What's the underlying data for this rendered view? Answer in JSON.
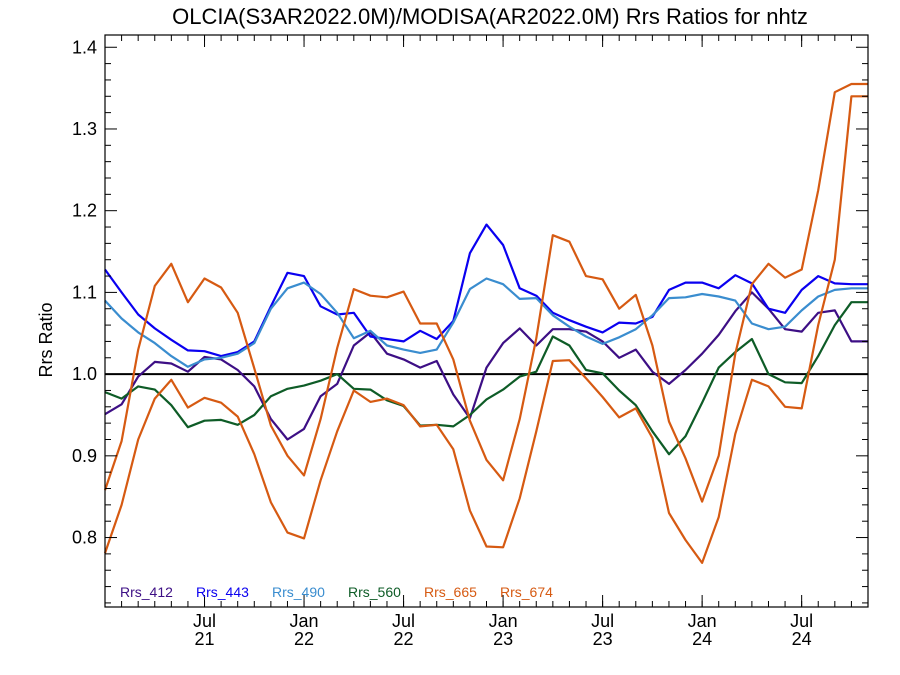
{
  "chart_data": {
    "type": "line",
    "title": "OLCIA(S3AR2022.0M)/MODISA(AR2022.0M)  Rrs Ratios for nhtz",
    "ylabel": "Rrs Ratio",
    "xlabel": "",
    "ylim": [
      0.715,
      1.415
    ],
    "y_ticks": [
      0.8,
      0.9,
      1.0,
      1.1,
      1.2,
      1.3,
      1.4
    ],
    "y_tick_labels": [
      "0.8",
      "0.9",
      "1.0",
      "1.1",
      "1.2",
      "1.3",
      "1.4"
    ],
    "x_range": [
      "2021-01",
      "2024-11"
    ],
    "x_ticks": [
      {
        "date": "2021-07",
        "month": "Jul",
        "year": "21"
      },
      {
        "date": "2022-01",
        "month": "Jan",
        "year": "22"
      },
      {
        "date": "2022-07",
        "month": "Jul",
        "year": "22"
      },
      {
        "date": "2023-01",
        "month": "Jan",
        "year": "23"
      },
      {
        "date": "2023-07",
        "month": "Jul",
        "year": "23"
      },
      {
        "date": "2024-01",
        "month": "Jan",
        "year": "24"
      },
      {
        "date": "2024-07",
        "month": "Jul",
        "year": "24"
      }
    ],
    "reference_line": 1.0,
    "x": [
      "2021-01",
      "2021-02",
      "2021-03",
      "2021-04",
      "2021-05",
      "2021-06",
      "2021-07",
      "2021-08",
      "2021-09",
      "2021-10",
      "2021-11",
      "2021-12",
      "2022-01",
      "2022-02",
      "2022-03",
      "2022-04",
      "2022-05",
      "2022-06",
      "2022-07",
      "2022-08",
      "2022-09",
      "2022-10",
      "2022-11",
      "2022-12",
      "2023-01",
      "2023-02",
      "2023-03",
      "2023-04",
      "2023-05",
      "2023-06",
      "2023-07",
      "2023-08",
      "2023-09",
      "2023-10",
      "2023-11",
      "2023-12",
      "2024-01",
      "2024-02",
      "2024-03",
      "2024-04",
      "2024-05",
      "2024-06",
      "2024-07",
      "2024-08",
      "2024-09",
      "2024-10",
      "2024-11"
    ],
    "series": [
      {
        "name": "Rrs_412",
        "color": "#3d0f85",
        "values": [
          0.951,
          0.963,
          0.997,
          1.015,
          1.013,
          1.003,
          1.021,
          1.018,
          1.005,
          0.985,
          0.945,
          0.92,
          0.933,
          0.973,
          0.988,
          1.035,
          1.051,
          1.025,
          1.018,
          1.008,
          1.016,
          0.975,
          0.946,
          1.008,
          1.038,
          1.056,
          1.035,
          1.055,
          1.055,
          1.052,
          1.04,
          1.02,
          1.03,
          1.003,
          0.988,
          1.005,
          1.025,
          1.048,
          1.077,
          1.1,
          1.08,
          1.055,
          1.052,
          1.075,
          1.078,
          1.04,
          1.04
        ]
      },
      {
        "name": "Rrs_443",
        "color": "#0a00f0",
        "values": [
          1.128,
          1.1,
          1.073,
          1.056,
          1.042,
          1.029,
          1.028,
          1.022,
          1.027,
          1.04,
          1.083,
          1.124,
          1.12,
          1.083,
          1.073,
          1.075,
          1.046,
          1.043,
          1.04,
          1.053,
          1.043,
          1.065,
          1.148,
          1.183,
          1.158,
          1.105,
          1.096,
          1.075,
          1.066,
          1.058,
          1.051,
          1.063,
          1.062,
          1.07,
          1.103,
          1.112,
          1.112,
          1.105,
          1.121,
          1.111,
          1.08,
          1.075,
          1.103,
          1.12,
          1.111,
          1.11,
          1.11
        ]
      },
      {
        "name": "Rrs_490",
        "color": "#3a8dcf",
        "values": [
          1.09,
          1.068,
          1.051,
          1.038,
          1.022,
          1.009,
          1.018,
          1.02,
          1.025,
          1.038,
          1.08,
          1.105,
          1.112,
          1.098,
          1.075,
          1.044,
          1.053,
          1.035,
          1.03,
          1.026,
          1.03,
          1.063,
          1.104,
          1.117,
          1.11,
          1.092,
          1.093,
          1.072,
          1.058,
          1.046,
          1.037,
          1.045,
          1.055,
          1.072,
          1.093,
          1.094,
          1.098,
          1.095,
          1.09,
          1.062,
          1.055,
          1.058,
          1.078,
          1.095,
          1.103,
          1.105,
          1.105
        ]
      },
      {
        "name": "Rrs_560",
        "color": "#0e5c27",
        "values": [
          0.978,
          0.97,
          0.985,
          0.981,
          0.962,
          0.935,
          0.943,
          0.944,
          0.938,
          0.95,
          0.973,
          0.982,
          0.986,
          0.992,
          1.0,
          0.982,
          0.981,
          0.968,
          0.961,
          0.937,
          0.938,
          0.936,
          0.95,
          0.969,
          0.981,
          0.997,
          1.003,
          1.046,
          1.035,
          1.005,
          1.001,
          0.98,
          0.962,
          0.93,
          0.902,
          0.924,
          0.965,
          1.008,
          1.027,
          1.043,
          1.0,
          0.99,
          0.989,
          1.022,
          1.06,
          1.088,
          1.088
        ]
      },
      {
        "name": "Rrs_665",
        "color": "#d65a12",
        "values": [
          0.781,
          0.84,
          0.92,
          0.97,
          0.993,
          0.959,
          0.971,
          0.965,
          0.948,
          0.902,
          0.843,
          0.806,
          0.799,
          0.87,
          0.93,
          0.98,
          0.966,
          0.97,
          0.962,
          0.936,
          0.938,
          0.908,
          0.833,
          0.789,
          0.788,
          0.848,
          0.93,
          1.016,
          1.017,
          0.995,
          0.972,
          0.947,
          0.958,
          0.922,
          0.83,
          0.797,
          0.769,
          0.825,
          0.927,
          0.993,
          0.985,
          0.96,
          0.958,
          1.06,
          1.14,
          1.34,
          1.34
        ]
      },
      {
        "name": "Rrs_674",
        "color": "#d65a12",
        "values": [
          0.858,
          0.918,
          1.03,
          1.108,
          1.135,
          1.088,
          1.117,
          1.106,
          1.075,
          1.007,
          0.937,
          0.9,
          0.876,
          0.945,
          1.032,
          1.104,
          1.096,
          1.094,
          1.101,
          1.062,
          1.062,
          1.018,
          0.943,
          0.895,
          0.87,
          0.945,
          1.044,
          1.17,
          1.162,
          1.12,
          1.116,
          1.08,
          1.097,
          1.035,
          0.942,
          0.897,
          0.844,
          0.9,
          1.025,
          1.11,
          1.135,
          1.118,
          1.128,
          1.225,
          1.345,
          1.355,
          1.355
        ]
      }
    ]
  }
}
